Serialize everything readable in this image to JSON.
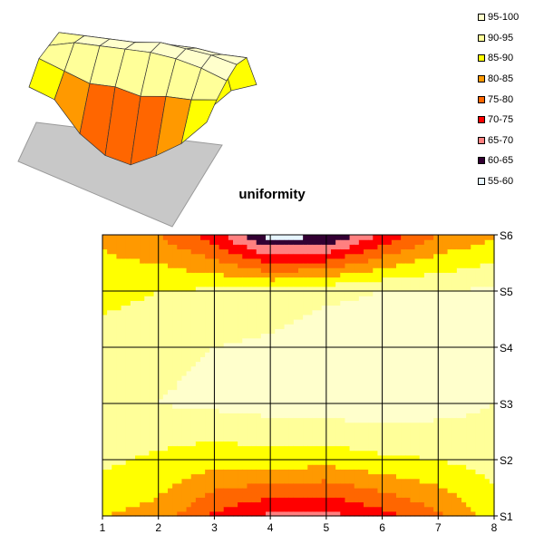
{
  "chart_data": {
    "type": "contour",
    "title": "uniformity",
    "x": [
      1,
      2,
      3,
      4,
      5,
      6,
      7,
      8
    ],
    "y_labels": [
      "S1",
      "S2",
      "S3",
      "S4",
      "S5",
      "S6"
    ],
    "bands": [
      {
        "label": "95-100",
        "color": "#ffffcc",
        "min": 95,
        "max": 100
      },
      {
        "label": "90-95",
        "color": "#ffff99",
        "min": 90,
        "max": 95
      },
      {
        "label": "85-90",
        "color": "#ffff00",
        "min": 85,
        "max": 90
      },
      {
        "label": "80-85",
        "color": "#ff9900",
        "min": 80,
        "max": 85
      },
      {
        "label": "75-80",
        "color": "#ff6600",
        "min": 75,
        "max": 80
      },
      {
        "label": "70-75",
        "color": "#ff0000",
        "min": 70,
        "max": 75
      },
      {
        "label": "65-70",
        "color": "#ff8080",
        "min": 65,
        "max": 70
      },
      {
        "label": "60-65",
        "color": "#330033",
        "min": 60,
        "max": 65
      },
      {
        "label": "55-60",
        "color": "#e6f5ff",
        "min": 55,
        "max": 60
      }
    ],
    "z": [
      [
        85,
        83,
        74,
        69,
        68,
        73,
        79,
        88
      ],
      [
        91,
        89,
        87,
        88,
        87,
        89,
        90,
        92
      ],
      [
        92,
        95,
        96,
        97,
        98,
        98,
        97,
        95
      ],
      [
        93,
        94,
        95,
        96,
        98,
        98,
        98,
        97
      ],
      [
        88,
        90,
        91,
        92,
        94,
        95,
        95,
        96
      ],
      [
        84,
        80,
        72,
        58,
        59,
        71,
        80,
        84
      ]
    ],
    "grid": true,
    "legend_position": "top-right"
  }
}
